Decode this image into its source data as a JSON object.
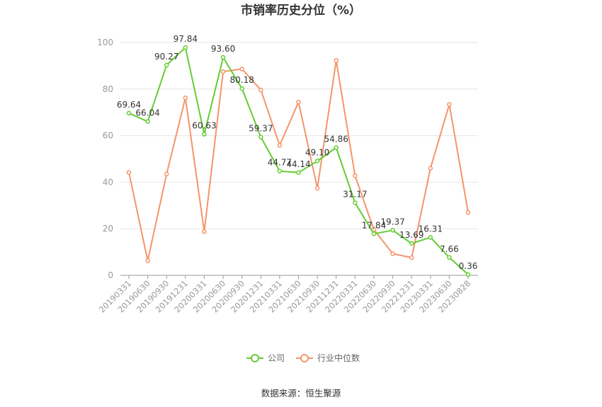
{
  "chart_data": {
    "type": "line",
    "title": "市销率历史分位（%）",
    "source": "数据来源：恒生聚源",
    "ylim": [
      0,
      100
    ],
    "yticks": [
      0,
      20,
      40,
      60,
      80,
      100
    ],
    "grid": true,
    "legend_position": "bottom",
    "categories": [
      "20190331",
      "20190630",
      "20190930",
      "20191231",
      "20200331",
      "20200630",
      "20200930",
      "20201231",
      "20210331",
      "20210630",
      "20210930",
      "20211231",
      "20220331",
      "20220630",
      "20220930",
      "20221231",
      "20230331",
      "20230630",
      "20230828"
    ],
    "series": [
      {
        "name": "公司",
        "color": "#66cc33",
        "show_labels": true,
        "values": [
          69.64,
          66.04,
          90.27,
          97.84,
          60.63,
          93.6,
          80.18,
          59.37,
          44.77,
          44.14,
          49.1,
          54.86,
          31.17,
          17.84,
          19.37,
          13.69,
          16.31,
          7.66,
          0.36
        ],
        "labels": [
          "69.64",
          "66.04",
          "90.27",
          "97.84",
          "60.63",
          "93.60",
          "80.18",
          "59.37",
          "44.77",
          "44.14",
          "49.10",
          "54.86",
          "31.17",
          "17.84",
          "19.37",
          "13.69",
          "16.31",
          "7.66",
          "0.36"
        ]
      },
      {
        "name": "行业中位数",
        "color": "#f4956a",
        "show_labels": false,
        "values": [
          44.2,
          6.3,
          43.5,
          76.2,
          18.8,
          87.5,
          88.6,
          79.6,
          55.8,
          74.4,
          37.4,
          92.3,
          42.8,
          19.6,
          9.3,
          7.6,
          46.0,
          73.4,
          27.0
        ]
      }
    ]
  }
}
